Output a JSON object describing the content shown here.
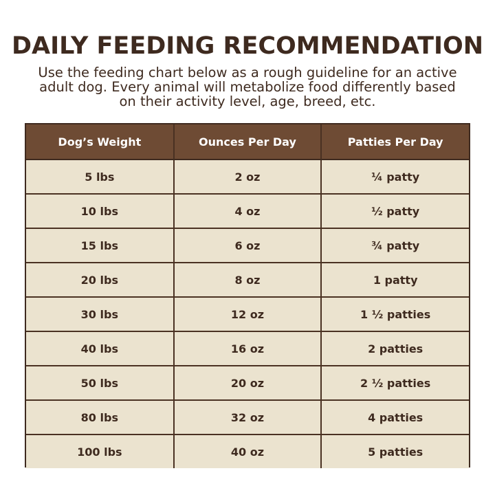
{
  "title": "DAILY FEEDING RECOMMENDATION",
  "subtitle": {
    "lines": [
      "Use the feeding chart below as a rough guideline for an active",
      "adult dog. Every animal will metabolize food differently based",
      "on their activity level, age, breed, etc."
    ]
  },
  "table": {
    "headers": [
      "Dog’s Weight",
      "Ounces Per Day",
      "Patties Per Day"
    ],
    "rows": [
      [
        "5 lbs",
        "2 oz",
        "¼ patty"
      ],
      [
        "10 lbs",
        "4 oz",
        "½ patty"
      ],
      [
        "15 lbs",
        "6 oz",
        "¾ patty"
      ],
      [
        "20 lbs",
        "8 oz",
        "1 patty"
      ],
      [
        "30 lbs",
        "12 oz",
        "1 ½ patties"
      ],
      [
        "40 lbs",
        "16 oz",
        "2 patties"
      ],
      [
        "50 lbs",
        "20 oz",
        "2 ½ patties"
      ],
      [
        "80 lbs",
        "32 oz",
        "4 patties"
      ],
      [
        "100 lbs",
        "40 oz",
        "5 patties"
      ]
    ]
  },
  "colors": {
    "header_bg": "#6e4b34",
    "cell_bg": "#ebe3cf",
    "text_dark": "#3e2a1f",
    "header_text": "#ffffff"
  }
}
